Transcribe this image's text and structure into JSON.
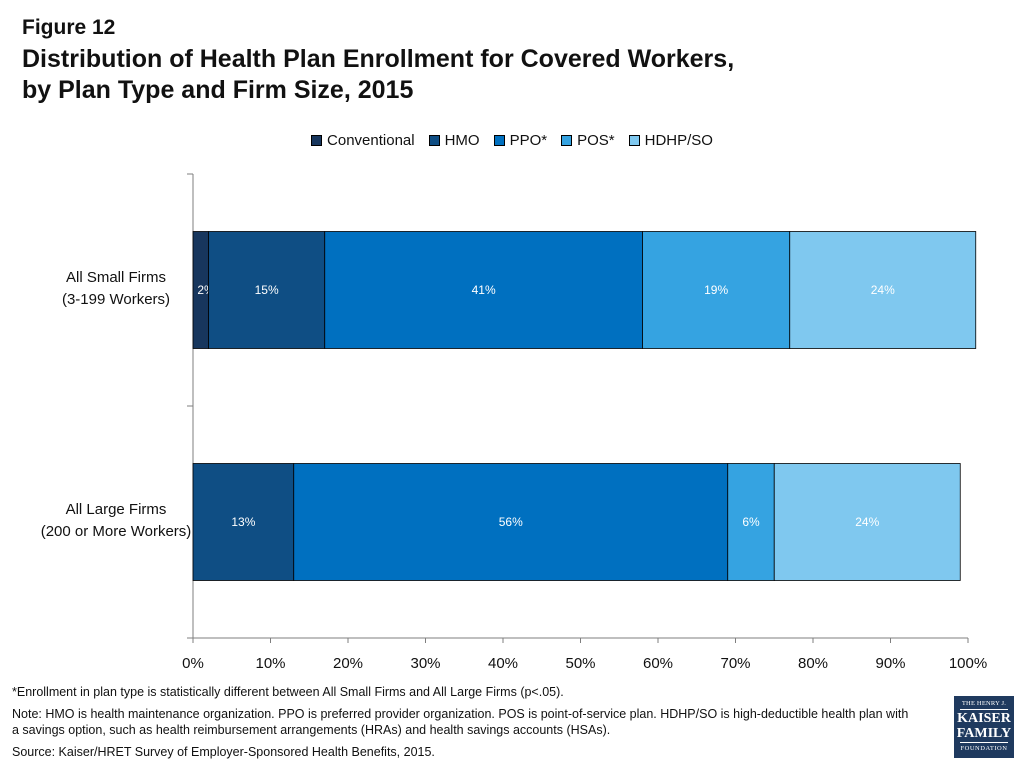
{
  "figure_label": "Figure 12",
  "title_line1": "Distribution of Health Plan Enrollment for Covered Workers,",
  "title_line2": "by Plan Type and Firm Size, 2015",
  "legend": [
    {
      "label": "Conventional",
      "color": "#17365d"
    },
    {
      "label": "HMO",
      "color": "#0f4e84"
    },
    {
      "label": "PPO*",
      "color": "#0070c0"
    },
    {
      "label": "POS*",
      "color": "#35a3e1"
    },
    {
      "label": "HDHP/SO",
      "color": "#7fc8ef"
    }
  ],
  "chart_data": {
    "type": "bar",
    "orientation": "horizontal",
    "stacked": true,
    "categories": [
      {
        "line1": "All Small Firms",
        "line2": "(3-199 Workers)"
      },
      {
        "line1": "All Large Firms",
        "line2": "(200 or More Workers)"
      }
    ],
    "series": [
      {
        "name": "Conventional",
        "color": "#17365d",
        "values": [
          2,
          0
        ],
        "labels": [
          "2%",
          ""
        ]
      },
      {
        "name": "HMO",
        "color": "#0f4e84",
        "values": [
          15,
          13
        ],
        "labels": [
          "15%",
          "13%"
        ]
      },
      {
        "name": "PPO*",
        "color": "#0070c0",
        "values": [
          41,
          56
        ],
        "labels": [
          "41%",
          "56%"
        ]
      },
      {
        "name": "POS*",
        "color": "#35a3e1",
        "values": [
          19,
          6
        ],
        "labels": [
          "19%",
          "6%"
        ]
      },
      {
        "name": "HDHP/SO",
        "color": "#7fc8ef",
        "values": [
          24,
          24
        ],
        "labels": [
          "24%",
          "24%"
        ]
      }
    ],
    "xlim": [
      0,
      100
    ],
    "xticks": [
      "0%",
      "10%",
      "20%",
      "30%",
      "40%",
      "50%",
      "60%",
      "70%",
      "80%",
      "90%",
      "100%"
    ],
    "grid": false,
    "legend_position": "top"
  },
  "footnote": "*Enrollment in plan type is statistically different between All Small Firms and All Large Firms (p<.05).",
  "note": "Note: HMO is health maintenance organization. PPO is preferred provider organization. POS is point-of-service plan. HDHP/SO is high-deductible health plan with a savings option, such as health reimbursement arrangements (HRAs) and health savings accounts (HSAs).",
  "source": "Source:  Kaiser/HRET Survey of Employer-Sponsored Health Benefits, 2015.",
  "logo": {
    "line1": "THE HENRY J.",
    "line2": "KAISER",
    "line3": "FAMILY",
    "line4": "FOUNDATION"
  }
}
